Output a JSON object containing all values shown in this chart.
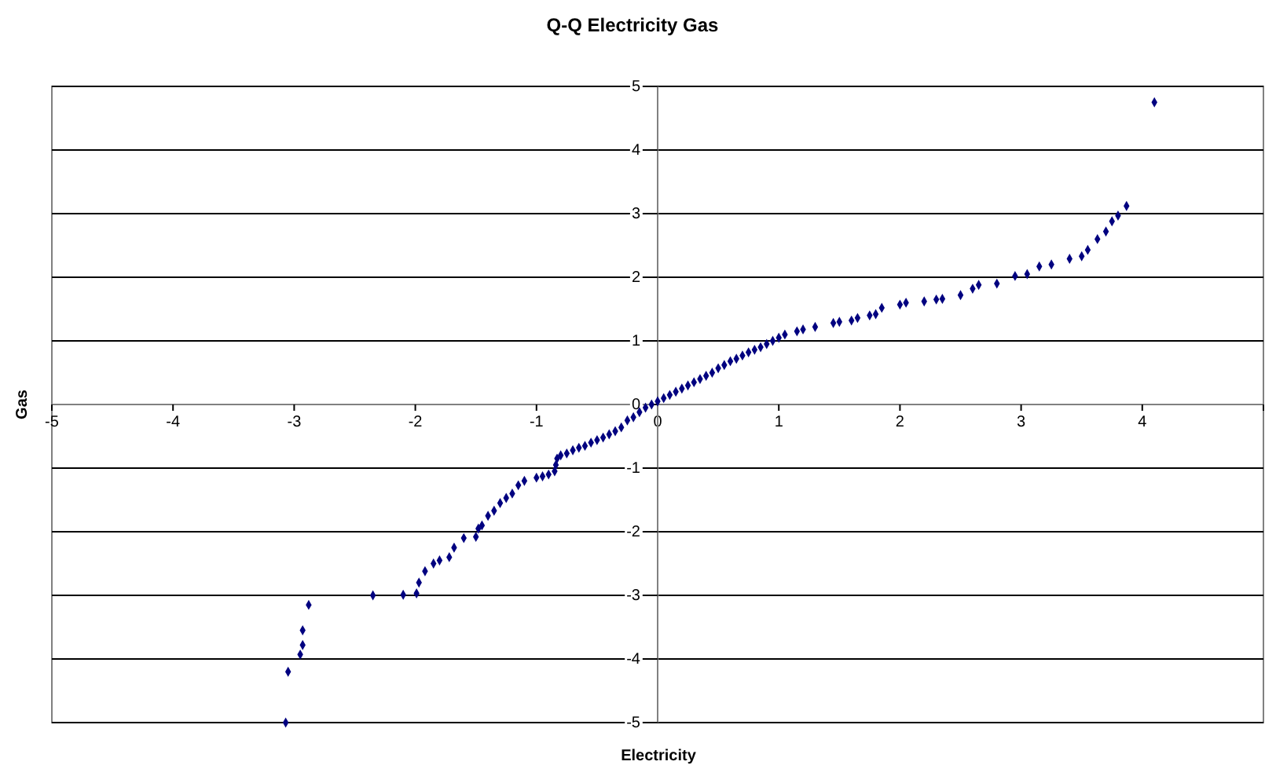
{
  "chart_data": {
    "type": "scatter",
    "title": "Q-Q Electricity Gas",
    "xlabel": "Electricity",
    "ylabel": "Gas",
    "xlim": [
      -5,
      5
    ],
    "xticks": [
      -5,
      -4,
      -3,
      -2,
      -1,
      0,
      1,
      2,
      3,
      4,
      {
        "value": 5,
        "label": null
      }
    ],
    "ylim": [
      -5,
      5
    ],
    "yticks": [
      -5,
      -4,
      -3,
      -2,
      -1,
      0,
      1,
      2,
      3,
      4,
      5
    ],
    "grid": "y",
    "marker": "diamond",
    "series": [
      {
        "color": "#000080",
        "x": [
          -3.07,
          -3.05,
          -2.95,
          -2.93,
          -2.93,
          -2.88,
          -2.35,
          -2.1,
          -1.99,
          -1.97,
          -1.92,
          -1.85,
          -1.8,
          -1.72,
          -1.68,
          -1.6,
          -1.5,
          -1.48,
          -1.45,
          -1.4,
          -1.35,
          -1.3,
          -1.25,
          -1.2,
          -1.15,
          -1.1,
          -1.0,
          -0.95,
          -0.9,
          -0.85,
          -0.84,
          -0.83,
          -0.8,
          -0.75,
          -0.7,
          -0.65,
          -0.6,
          -0.55,
          -0.5,
          -0.45,
          -0.4,
          -0.35,
          -0.3,
          -0.25,
          -0.2,
          -0.15,
          -0.1,
          -0.05,
          0,
          0.05,
          0.1,
          0.15,
          0.2,
          0.25,
          0.3,
          0.35,
          0.4,
          0.45,
          0.5,
          0.55,
          0.6,
          0.65,
          0.7,
          0.75,
          0.8,
          0.85,
          0.9,
          0.95,
          1.0,
          1.05,
          1.15,
          1.2,
          1.3,
          1.45,
          1.5,
          1.6,
          1.65,
          1.75,
          1.8,
          1.85,
          2.0,
          2.05,
          2.2,
          2.3,
          2.35,
          2.5,
          2.6,
          2.65,
          2.8,
          2.95,
          3.05,
          3.15,
          3.25,
          3.4,
          3.5,
          3.55,
          3.63,
          3.7,
          3.75,
          3.8,
          3.87,
          4.1
        ],
        "values": [
          -5.0,
          -4.2,
          -3.93,
          -3.78,
          -3.55,
          -3.15,
          -3.0,
          -2.99,
          -2.97,
          -2.8,
          -2.62,
          -2.5,
          -2.45,
          -2.4,
          -2.25,
          -2.1,
          -2.08,
          -1.95,
          -1.9,
          -1.75,
          -1.67,
          -1.55,
          -1.47,
          -1.4,
          -1.27,
          -1.2,
          -1.15,
          -1.13,
          -1.1,
          -1.05,
          -0.95,
          -0.85,
          -0.8,
          -0.77,
          -0.72,
          -0.68,
          -0.65,
          -0.6,
          -0.56,
          -0.52,
          -0.47,
          -0.42,
          -0.36,
          -0.25,
          -0.2,
          -0.12,
          -0.05,
          0.0,
          0.05,
          0.1,
          0.15,
          0.2,
          0.25,
          0.3,
          0.35,
          0.4,
          0.45,
          0.5,
          0.57,
          0.62,
          0.68,
          0.72,
          0.77,
          0.82,
          0.86,
          0.9,
          0.95,
          1.0,
          1.05,
          1.1,
          1.15,
          1.18,
          1.22,
          1.28,
          1.3,
          1.32,
          1.36,
          1.4,
          1.42,
          1.52,
          1.57,
          1.6,
          1.62,
          1.65,
          1.66,
          1.72,
          1.82,
          1.88,
          1.9,
          2.02,
          2.05,
          2.17,
          2.2,
          2.29,
          2.33,
          2.43,
          2.6,
          2.72,
          2.88,
          2.97,
          3.12,
          4.75
        ]
      }
    ]
  }
}
